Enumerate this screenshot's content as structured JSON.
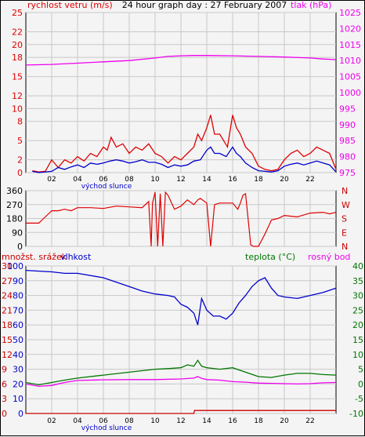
{
  "colors": {
    "wind": "#e00000",
    "gust_base": "#0000cc",
    "pressure": "#ee00ee",
    "direction": "#e00000",
    "humidity": "#0000cc",
    "temperature": "#007700",
    "dewpoint": "#ee00ee",
    "precip": "#cc0000"
  },
  "chart_data": [
    {
      "type": "line",
      "title": "24 hour graph day : 27 February 2007",
      "left_label": "rychlost vetru (m/s)",
      "right_label": "tlak (hPa)",
      "x_ticks": [
        "02",
        "04",
        "06",
        "08",
        "10",
        "12",
        "14",
        "16",
        "18",
        "20",
        "22"
      ],
      "x_sublabel": "východ slunce",
      "ylim_left": [
        0,
        25
      ],
      "y_ticks_left": [
        0,
        2,
        5,
        8,
        10,
        12,
        15,
        18,
        20,
        22,
        25
      ],
      "ylim_right": [
        975,
        1025
      ],
      "y_ticks_right": [
        975,
        980,
        985,
        990,
        995,
        1000,
        1005,
        1010,
        1015,
        1020,
        1025
      ],
      "grid": true,
      "series": [
        {
          "name": "rychlost vetru (m/s)",
          "axis": "left",
          "x": [
            0.5,
            1,
            1.5,
            2,
            2.5,
            3,
            3.5,
            4,
            4.5,
            5,
            5.5,
            6,
            6.3,
            6.6,
            7,
            7.5,
            8,
            8.5,
            9,
            9.5,
            10,
            10.5,
            11,
            11.5,
            12,
            12.5,
            13,
            13.3,
            13.6,
            14,
            14.3,
            14.6,
            15,
            15.3,
            15.6,
            16,
            16.3,
            16.6,
            17,
            17.5,
            18,
            18.5,
            19,
            19.5,
            20,
            20.5,
            21,
            21.5,
            22,
            22.5,
            23,
            23.5,
            24
          ],
          "values": [
            0.3,
            0.1,
            0.2,
            2,
            0.8,
            2,
            1.5,
            2.5,
            1.8,
            3,
            2.5,
            4,
            3.5,
            5.5,
            4,
            4.5,
            3,
            4,
            3.5,
            4.5,
            3,
            2.5,
            1.5,
            2.5,
            2,
            3,
            4,
            6,
            5,
            7,
            9,
            6,
            6,
            5,
            4,
            9,
            7,
            6,
            4,
            3,
            1,
            0.5,
            0.3,
            0.5,
            2,
            3,
            3.5,
            2.5,
            3,
            4,
            3.5,
            3,
            0.5
          ]
        },
        {
          "name": "",
          "axis": "left",
          "x": [
            0.5,
            1,
            2,
            2.5,
            3,
            3.5,
            4,
            4.5,
            5,
            5.5,
            6,
            6.5,
            7,
            7.5,
            8,
            8.5,
            9,
            9.5,
            10,
            10.5,
            11,
            11.5,
            12,
            12.5,
            13,
            13.5,
            14,
            14.3,
            14.6,
            15,
            15.5,
            16,
            16.3,
            16.6,
            17,
            17.5,
            18,
            18.5,
            19,
            19.5,
            20,
            20.5,
            21,
            21.5,
            22,
            22.5,
            23,
            23.5,
            24
          ],
          "values": [
            0.2,
            0,
            0.2,
            0.8,
            0.5,
            0.9,
            1.2,
            0.8,
            1.5,
            1.3,
            1.5,
            1.8,
            2,
            1.8,
            1.5,
            1.7,
            2,
            1.6,
            1.6,
            1.3,
            0.8,
            1.2,
            1.0,
            1.2,
            1.8,
            2,
            3.5,
            4,
            3,
            3,
            2.5,
            4,
            3,
            2.5,
            1.5,
            0.8,
            0.3,
            0.2,
            0.1,
            0.3,
            1,
            1.3,
            1.5,
            1.2,
            1.5,
            1.8,
            1.5,
            1.2,
            0.1
          ]
        },
        {
          "name": "tlak (hPa)",
          "axis": "right",
          "x": [
            0,
            2,
            4,
            6,
            8,
            10,
            11,
            12,
            13,
            14,
            16,
            18,
            20,
            22,
            23,
            24
          ],
          "values": [
            1008.6,
            1008.8,
            1009.2,
            1009.6,
            1010.0,
            1010.8,
            1011.3,
            1011.5,
            1011.6,
            1011.6,
            1011.5,
            1011.3,
            1011.1,
            1010.8,
            1010.5,
            1010.3
          ]
        }
      ]
    },
    {
      "type": "line",
      "title": "",
      "y_ticks_left": [
        "360",
        "270",
        "180",
        "90",
        "0"
      ],
      "y_ticks_right": [
        "N",
        "W",
        "S",
        "E",
        "N"
      ],
      "ylim": [
        0,
        360
      ],
      "grid": true,
      "series": [
        {
          "name": "",
          "x": [
            0,
            0.5,
            1,
            1.5,
            2,
            2.5,
            3,
            3.5,
            4,
            5,
            6,
            7,
            8,
            9,
            9.5,
            9.7,
            9.8,
            10,
            10.2,
            10.4,
            10.6,
            10.8,
            11,
            11.5,
            12,
            12.5,
            13,
            13.3,
            13.5,
            14,
            14.3,
            14.6,
            15,
            16,
            16.4,
            16.6,
            16.8,
            17,
            17.4,
            17.6,
            18,
            18.5,
            19,
            19.5,
            20,
            21,
            22,
            23,
            23.5,
            24
          ],
          "values": [
            150,
            150,
            150,
            190,
            230,
            230,
            240,
            230,
            250,
            250,
            245,
            260,
            255,
            250,
            290,
            0,
            280,
            350,
            0,
            340,
            0,
            350,
            330,
            240,
            260,
            300,
            270,
            300,
            310,
            280,
            0,
            270,
            280,
            280,
            240,
            280,
            330,
            340,
            10,
            0,
            0,
            80,
            170,
            180,
            200,
            190,
            215,
            220,
            210,
            220
          ]
        }
      ]
    },
    {
      "type": "line",
      "title": "",
      "left_labels": [
        "množst. srážek",
        "vlhkost"
      ],
      "right_labels": [
        "teplota (°C)",
        "rosný bod"
      ],
      "x_ticks": [
        "02",
        "04",
        "06",
        "08",
        "10",
        "12",
        "14",
        "16",
        "18",
        "20",
        "22"
      ],
      "x_sublabel": "východ slunce",
      "y_ticks_precip": [
        0,
        3,
        6,
        9,
        12,
        15,
        18,
        21,
        24,
        27,
        30
      ],
      "y_ticks_humidity": [
        0,
        10,
        20,
        30,
        40,
        50,
        60,
        70,
        80,
        90,
        100
      ],
      "y_ticks_temp": [
        -10,
        -5,
        0,
        5,
        10,
        15,
        20,
        25,
        30,
        35,
        40
      ],
      "ylim_humidity": [
        0,
        100
      ],
      "ylim_temp": [
        -10,
        40
      ],
      "grid": true,
      "series": [
        {
          "name": "vlhkost",
          "axis": "humidity",
          "x": [
            0,
            2,
            3,
            4,
            6,
            8,
            9,
            10,
            11,
            11.5,
            12,
            12.5,
            13,
            13.3,
            13.6,
            14,
            14.5,
            15,
            15.5,
            16,
            16.5,
            17,
            17.5,
            18,
            18.5,
            19,
            19.5,
            20,
            21,
            22,
            23,
            24
          ],
          "values": [
            97,
            96,
            95,
            95,
            92,
            86,
            83,
            81,
            80,
            79,
            74,
            72,
            68,
            60,
            78,
            70,
            66,
            66,
            64,
            68,
            75,
            80,
            86,
            90,
            92,
            85,
            80,
            79,
            78,
            80,
            82,
            85
          ]
        },
        {
          "name": "teplota (°C)",
          "axis": "temp",
          "x": [
            0,
            1,
            2,
            3,
            4,
            6,
            8,
            10,
            11,
            12,
            12.5,
            13,
            13.3,
            13.6,
            14,
            15,
            16,
            17,
            18,
            19,
            20,
            21,
            22,
            23,
            24
          ],
          "values": [
            0.5,
            -0.3,
            0.5,
            1.3,
            2,
            3,
            4,
            5,
            5.2,
            5.5,
            6.5,
            6,
            8,
            6,
            5.5,
            5,
            5.5,
            4,
            2.5,
            2.2,
            3,
            3.6,
            3.6,
            3.2,
            3.0
          ]
        },
        {
          "name": "rosný bod",
          "axis": "temp",
          "x": [
            0,
            1,
            2,
            3,
            4,
            6,
            8,
            10,
            12,
            13,
            13.3,
            13.6,
            14,
            15,
            16,
            17,
            18,
            19,
            20,
            21,
            22,
            23,
            24
          ],
          "values": [
            0,
            -0.8,
            -0.5,
            0.5,
            1.2,
            1.4,
            1.5,
            1.5,
            1.7,
            2.0,
            2.5,
            1.9,
            1.5,
            1.3,
            0.8,
            0.6,
            0.3,
            0.2,
            0.1,
            0,
            0.1,
            0.4,
            0.5
          ]
        },
        {
          "name": "množst. srážek",
          "axis": "precip",
          "x": [
            0,
            13,
            13.05,
            24
          ],
          "values": [
            0,
            0,
            0.6,
            0.6
          ]
        }
      ]
    }
  ]
}
